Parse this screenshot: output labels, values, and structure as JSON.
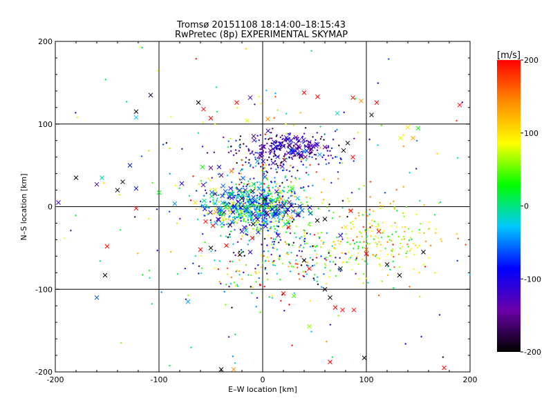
{
  "chart_data": {
    "type": "scatter",
    "title": "Tromsø 20151108 18:14:00–18:15:43",
    "subtitle": "RwPretec (8p) EXPERIMENTAL SKYMAP",
    "xlabel": "E–W location [km]",
    "ylabel": "N–S location [km]",
    "xlim": [
      -200,
      200
    ],
    "ylim": [
      -200,
      200
    ],
    "xticks": [
      "-200",
      "-100",
      "0",
      "100",
      "200"
    ],
    "yticks": [
      "-200",
      "-100",
      "0",
      "100",
      "200"
    ],
    "grid": true,
    "colorbar": {
      "label": "[m/s]",
      "range": [
        -200,
        200
      ],
      "ticks": [
        "200",
        "100",
        "0",
        "-100",
        "-200"
      ],
      "colors": [
        "#000000",
        "#6a00a8",
        "#0000ff",
        "#00c8ff",
        "#00ff00",
        "#ffff00",
        "#ff8c00",
        "#ff0000"
      ]
    },
    "markers": [
      "cross (x)",
      "dot (+)"
    ],
    "points_large": [
      {
        "x": -197,
        "y": 5,
        "v": -120
      },
      {
        "x": -180,
        "y": 35,
        "v": -200
      },
      {
        "x": -160,
        "y": 27,
        "v": -120
      },
      {
        "x": -155,
        "y": 35,
        "v": -10
      },
      {
        "x": -152,
        "y": -83,
        "v": -200
      },
      {
        "x": -150,
        "y": -48,
        "v": 200
      },
      {
        "x": -160,
        "y": -110,
        "v": -60
      },
      {
        "x": -140,
        "y": 20,
        "v": -200
      },
      {
        "x": -135,
        "y": 30,
        "v": -200
      },
      {
        "x": -128,
        "y": 50,
        "v": -80
      },
      {
        "x": -122,
        "y": 115,
        "v": -200
      },
      {
        "x": -122,
        "y": 108,
        "v": -30
      },
      {
        "x": -122,
        "y": 22,
        "v": -80
      },
      {
        "x": -122,
        "y": -2,
        "v": 200
      },
      {
        "x": -108,
        "y": 135,
        "v": -180
      },
      {
        "x": -100,
        "y": 17,
        "v": 20
      },
      {
        "x": -78,
        "y": 28,
        "v": -100
      },
      {
        "x": -72,
        "y": -115,
        "v": -40
      },
      {
        "x": -62,
        "y": 126,
        "v": -200
      },
      {
        "x": -57,
        "y": 118,
        "v": 200
      },
      {
        "x": -50,
        "y": 107,
        "v": 200
      },
      {
        "x": -50,
        "y": 47,
        "v": -150
      },
      {
        "x": -58,
        "y": 48,
        "v": 30
      },
      {
        "x": -42,
        "y": 48,
        "v": -100
      },
      {
        "x": -25,
        "y": 126,
        "v": 200
      },
      {
        "x": -15,
        "y": 104,
        "v": 80
      },
      {
        "x": 5,
        "y": 106,
        "v": 140
      },
      {
        "x": -12,
        "y": 132,
        "v": -120
      },
      {
        "x": 40,
        "y": 138,
        "v": 200
      },
      {
        "x": 53,
        "y": 133,
        "v": 200
      },
      {
        "x": 72,
        "y": 113,
        "v": -10
      },
      {
        "x": 87,
        "y": 132,
        "v": 200
      },
      {
        "x": 95,
        "y": 128,
        "v": 140
      },
      {
        "x": 110,
        "y": 126,
        "v": 200
      },
      {
        "x": 105,
        "y": 111,
        "v": -200
      },
      {
        "x": 140,
        "y": 96,
        "v": 100
      },
      {
        "x": 150,
        "y": 95,
        "v": 30
      },
      {
        "x": 133,
        "y": 83,
        "v": 80
      },
      {
        "x": 145,
        "y": 83,
        "v": 130
      },
      {
        "x": 190,
        "y": 123,
        "v": 200
      },
      {
        "x": 82,
        "y": 77,
        "v": -200
      },
      {
        "x": 78,
        "y": 68,
        "v": -200
      },
      {
        "x": 87,
        "y": 60,
        "v": 200
      },
      {
        "x": 60,
        "y": 72,
        "v": -150
      },
      {
        "x": 55,
        "y": 63,
        "v": -40
      },
      {
        "x": 20,
        "y": 73,
        "v": -110
      },
      {
        "x": 35,
        "y": 80,
        "v": -110
      },
      {
        "x": 45,
        "y": 78,
        "v": -130
      },
      {
        "x": 40,
        "y": 67,
        "v": -50
      },
      {
        "x": 28,
        "y": 68,
        "v": -100
      },
      {
        "x": 10,
        "y": 70,
        "v": -120
      },
      {
        "x": -5,
        "y": 55,
        "v": -40
      },
      {
        "x": -65,
        "y": 5,
        "v": 100
      },
      {
        "x": 85,
        "y": -5,
        "v": 200
      },
      {
        "x": 60,
        "y": -15,
        "v": -200
      },
      {
        "x": 75,
        "y": -35,
        "v": -110
      },
      {
        "x": 80,
        "y": -25,
        "v": 100
      },
      {
        "x": 100,
        "y": -52,
        "v": 150
      },
      {
        "x": 100,
        "y": -57,
        "v": 200
      },
      {
        "x": 112,
        "y": -30,
        "v": 200
      },
      {
        "x": 120,
        "y": -70,
        "v": -200
      },
      {
        "x": 132,
        "y": -83,
        "v": -200
      },
      {
        "x": 155,
        "y": -55,
        "v": -200
      },
      {
        "x": 75,
        "y": -75,
        "v": -200
      },
      {
        "x": 40,
        "y": -65,
        "v": -200
      },
      {
        "x": 45,
        "y": -75,
        "v": 200
      },
      {
        "x": 60,
        "y": -100,
        "v": -200
      },
      {
        "x": 65,
        "y": -110,
        "v": -200
      },
      {
        "x": 70,
        "y": -122,
        "v": 200
      },
      {
        "x": 77,
        "y": -125,
        "v": 200
      },
      {
        "x": 88,
        "y": -125,
        "v": 200
      },
      {
        "x": 45,
        "y": -145,
        "v": 60
      },
      {
        "x": 65,
        "y": -188,
        "v": 200
      },
      {
        "x": 98,
        "y": -183,
        "v": -200
      },
      {
        "x": 175,
        "y": -195,
        "v": 200
      },
      {
        "x": 30,
        "y": -108,
        "v": 40
      },
      {
        "x": 20,
        "y": -105,
        "v": 200
      },
      {
        "x": -22,
        "y": -58,
        "v": -200
      },
      {
        "x": -12,
        "y": -55,
        "v": -110
      },
      {
        "x": -35,
        "y": -47,
        "v": 200
      },
      {
        "x": -50,
        "y": -50,
        "v": -200
      },
      {
        "x": -60,
        "y": -52,
        "v": 200
      },
      {
        "x": -48,
        "y": -23,
        "v": 200
      },
      {
        "x": -55,
        "y": -18,
        "v": 200
      },
      {
        "x": -45,
        "y": -20,
        "v": -50
      },
      {
        "x": -20,
        "y": -30,
        "v": -100
      },
      {
        "x": -10,
        "y": -38,
        "v": 200
      },
      {
        "x": -40,
        "y": 38,
        "v": -150
      },
      {
        "x": -30,
        "y": 43,
        "v": 150
      },
      {
        "x": -20,
        "y": 10,
        "v": -200
      },
      {
        "x": -10,
        "y": 5,
        "v": -100
      },
      {
        "x": 5,
        "y": -10,
        "v": -150
      },
      {
        "x": 15,
        "y": -35,
        "v": -120
      },
      {
        "x": 25,
        "y": -25,
        "v": 200
      },
      {
        "x": -40,
        "y": -197,
        "v": -200
      },
      {
        "x": -28,
        "y": -197,
        "v": 140
      }
    ],
    "clusters": [
      {
        "cx": -8,
        "cy": 0,
        "sx": 22,
        "sy": 13,
        "n": 520
      },
      {
        "cx": 20,
        "cy": 68,
        "sx": 26,
        "sy": 12,
        "n": 230
      },
      {
        "cx": 10,
        "cy": 30,
        "sx": 28,
        "sy": 18,
        "n": 110
      },
      {
        "cx": 110,
        "cy": -40,
        "sx": 30,
        "sy": 22,
        "n": 220
      },
      {
        "cx": 30,
        "cy": -50,
        "sx": 35,
        "sy": 28,
        "n": 160
      },
      {
        "cx": -5,
        "cy": -60,
        "sx": 35,
        "sy": 35,
        "n": 110
      },
      {
        "cx": 0,
        "cy": 0,
        "sx": 110,
        "sy": 110,
        "n": 220
      }
    ]
  }
}
